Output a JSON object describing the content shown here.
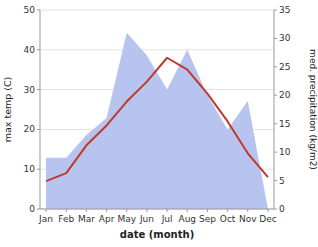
{
  "chart_data": {
    "type": "line",
    "categories": [
      "Jan",
      "Feb",
      "Mar",
      "Apr",
      "May",
      "Jun",
      "Jul",
      "Aug",
      "Sep",
      "Oct",
      "Nov",
      "Dec"
    ],
    "series": [
      {
        "type": "area",
        "axis": "y2",
        "color": "#b8c4f0",
        "values": [
          9,
          9,
          13,
          16,
          31,
          27,
          21,
          28,
          20,
          14,
          19,
          0
        ]
      },
      {
        "type": "line",
        "color": "#c0392b",
        "values": [
          7,
          9,
          16,
          21,
          27,
          32,
          38,
          35,
          29,
          22,
          14,
          8
        ]
      }
    ],
    "xlabel": "date (month)",
    "ylabel": "max temp (C)",
    "y2label": "med. precipitation (kg/m2)",
    "ylim": [
      0,
      50
    ],
    "yticks": [
      0,
      10,
      20,
      30,
      40,
      50
    ],
    "y2lim": [
      0,
      35
    ],
    "y2ticks": [
      0,
      5,
      10,
      15,
      20,
      25,
      30,
      35
    ],
    "grid": true
  }
}
